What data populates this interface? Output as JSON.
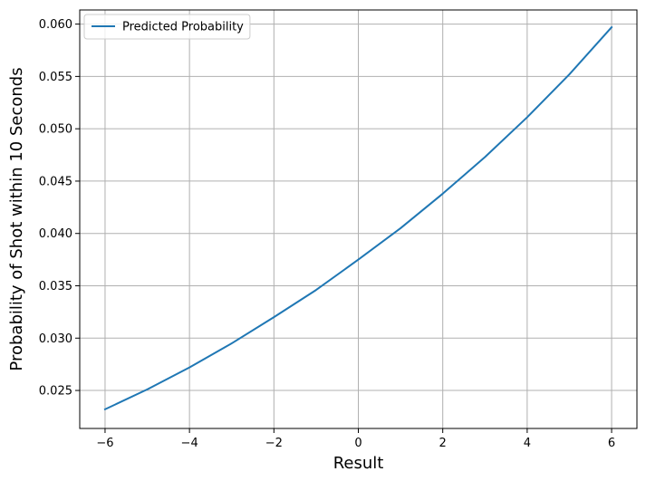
{
  "chart_data": {
    "type": "line",
    "title": "",
    "xlabel": "Result",
    "ylabel": "Probability of Shot within 10 Seconds",
    "xlim": [
      -6.6,
      6.6
    ],
    "ylim": [
      0.02137,
      0.06135
    ],
    "x_ticks": [
      -6,
      -4,
      -2,
      0,
      2,
      4,
      6
    ],
    "x_tick_labels": [
      "−6",
      "−4",
      "−2",
      "0",
      "2",
      "4",
      "6"
    ],
    "y_ticks": [
      0.025,
      0.03,
      0.035,
      0.04,
      0.045,
      0.05,
      0.055,
      0.06
    ],
    "y_tick_labels": [
      "0.025",
      "0.030",
      "0.035",
      "0.040",
      "0.045",
      "0.050",
      "0.055",
      "0.060"
    ],
    "grid": true,
    "legend_position": "upper-left",
    "series": [
      {
        "name": "Predicted Probability",
        "color": "#1f77b4",
        "x": [
          -6,
          -5,
          -4,
          -3,
          -2,
          -1,
          0,
          1,
          2,
          3,
          4,
          5,
          6
        ],
        "y": [
          0.0232,
          0.0251,
          0.0272,
          0.0295,
          0.032,
          0.0346,
          0.0375,
          0.0405,
          0.0438,
          0.0473,
          0.0511,
          0.0552,
          0.0597
        ]
      }
    ]
  }
}
